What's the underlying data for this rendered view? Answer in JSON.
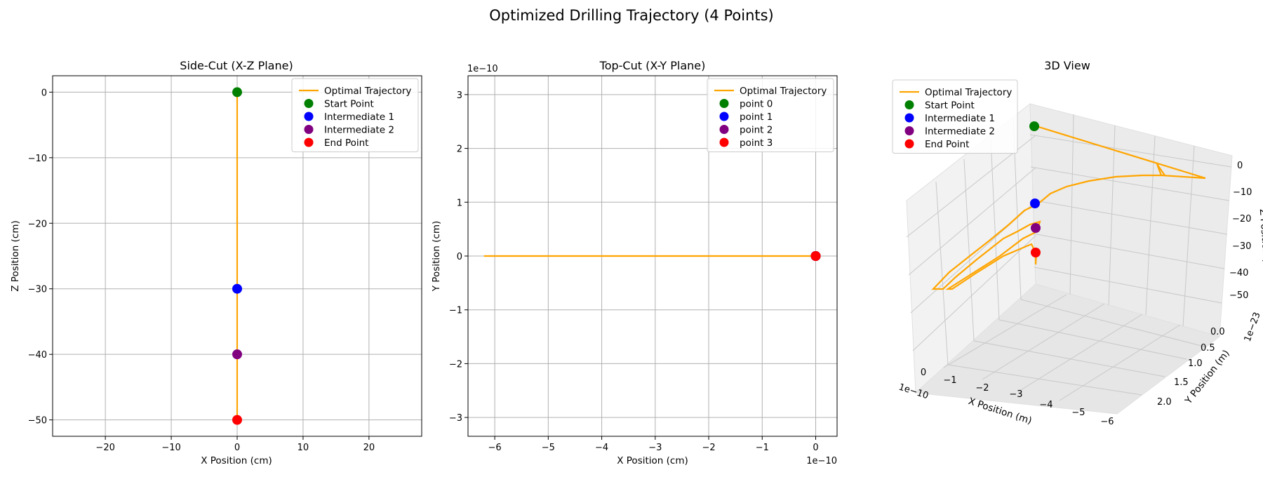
{
  "figure": {
    "title": "Optimized Drilling Trajectory (4 Points)"
  },
  "colors": {
    "trajectory": "#ffa500",
    "start": "#008000",
    "intermediate1": "#0000ff",
    "intermediate2": "#800080",
    "end": "#ff0000",
    "grid": "#b0b0b0",
    "pane": "#f2f2f2"
  },
  "chart_data": [
    {
      "id": "side",
      "type": "line",
      "title": "Side-Cut (X-Z Plane)",
      "xlabel": "X Position (cm)",
      "ylabel": "Z Position (cm)",
      "xlim": [
        -28,
        28
      ],
      "ylim": [
        -52.5,
        2.5
      ],
      "xticks": [
        -20,
        -10,
        0,
        10,
        20
      ],
      "yticks": [
        0,
        -10,
        -20,
        -30,
        -40,
        -50
      ],
      "grid": true,
      "legend_position": "top-right",
      "trajectory": {
        "name": "Optimal Trajectory",
        "x": [
          0,
          0,
          0,
          0
        ],
        "y": [
          0,
          -30,
          -40,
          -50
        ]
      },
      "points": [
        {
          "name": "Start Point",
          "x": 0,
          "y": 0,
          "color": "#008000"
        },
        {
          "name": "Intermediate 1",
          "x": 0,
          "y": -30,
          "color": "#0000ff"
        },
        {
          "name": "Intermediate 2",
          "x": 0,
          "y": -40,
          "color": "#800080"
        },
        {
          "name": "End Point",
          "x": 0,
          "y": -50,
          "color": "#ff0000"
        }
      ]
    },
    {
      "id": "top",
      "type": "line",
      "title": "Top-Cut (X-Y Plane)",
      "xlabel": "X Position (cm)",
      "ylabel": "Y Position (cm)",
      "x_offset_text": "1e−10",
      "y_offset_text": "1e−10",
      "xlim": [
        -6.5,
        0.4
      ],
      "ylim": [
        -3.35,
        3.35
      ],
      "xticks": [
        -6,
        -5,
        -4,
        -3,
        -2,
        -1,
        0
      ],
      "yticks": [
        3,
        2,
        1,
        0,
        -1,
        -2,
        -3
      ],
      "grid": true,
      "legend_position": "top-right",
      "trajectory": {
        "name": "Optimal Trajectory",
        "x": [
          -6.2,
          -3.0,
          0
        ],
        "y": [
          0,
          0,
          0
        ]
      },
      "points": [
        {
          "name": "point 0",
          "x": 0,
          "y": 0,
          "color": "#008000"
        },
        {
          "name": "point 1",
          "x": 0,
          "y": 0,
          "color": "#0000ff"
        },
        {
          "name": "point 2",
          "x": 0,
          "y": 0,
          "color": "#800080"
        },
        {
          "name": "point 3",
          "x": 0,
          "y": 0,
          "color": "#ff0000"
        }
      ]
    },
    {
      "id": "3d",
      "type": "line",
      "title": "3D View",
      "xlabel": "X Position (m)",
      "ylabel": "Y Position (m)",
      "zlabel": "Z Position (m)",
      "x_offset_text": "1e−10",
      "y_offset_text": "1e−23",
      "xticks": [
        0,
        -1,
        -2,
        -3,
        -4,
        -5,
        -6
      ],
      "yticks": [
        0.0,
        0.5,
        1.0,
        1.5,
        2.0
      ],
      "zticks": [
        0,
        -10,
        -20,
        -30,
        -40,
        -50
      ],
      "legend_position": "top-left",
      "legend": [
        {
          "name": "Optimal Trajectory",
          "color": "#ffa500",
          "kind": "line"
        },
        {
          "name": "Start Point",
          "color": "#008000",
          "kind": "marker"
        },
        {
          "name": "Intermediate 1",
          "color": "#0000ff",
          "kind": "marker"
        },
        {
          "name": "Intermediate 2",
          "color": "#800080",
          "kind": "marker"
        },
        {
          "name": "End Point",
          "color": "#ff0000",
          "kind": "marker"
        }
      ]
    }
  ]
}
